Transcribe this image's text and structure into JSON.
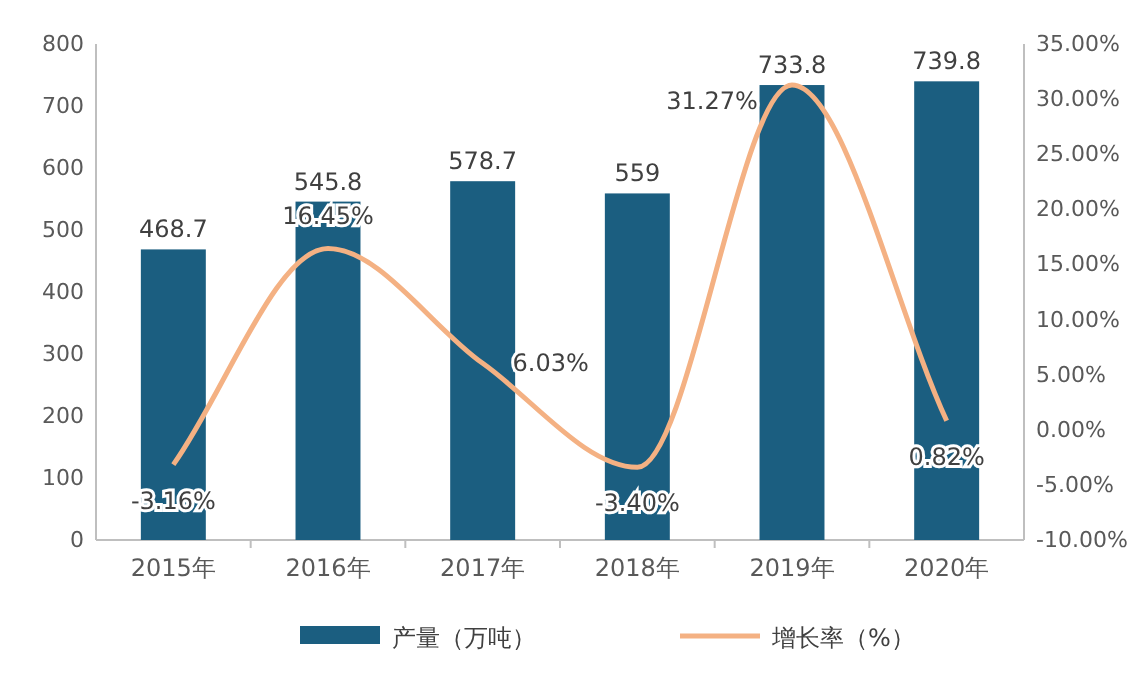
{
  "chart_data": {
    "type": "bar",
    "categories": [
      "2015年",
      "2016年",
      "2017年",
      "2018年",
      "2019年",
      "2020年"
    ],
    "series": [
      {
        "name": "产量（万吨）",
        "color": "#1b5e80",
        "values": [
          468.7,
          545.8,
          578.7,
          559,
          733.8,
          739.8
        ],
        "value_labels": [
          "468.7",
          "545.8",
          "578.7",
          "559",
          "733.8",
          "739.8"
        ]
      },
      {
        "name": "增长率（%）",
        "type": "line",
        "axis": "y2",
        "color": "#f4b183",
        "values": [
          -3.16,
          16.45,
          6.03,
          -3.4,
          31.27,
          0.82
        ],
        "value_labels": [
          "-3.16%",
          "16.45%",
          "6.03%",
          "-3.40%",
          "31.27%",
          "0.82%"
        ]
      }
    ],
    "ylim": [
      0,
      800
    ],
    "yticks": [
      0,
      100,
      200,
      300,
      400,
      500,
      600,
      700,
      800
    ],
    "y2lim": [
      -10,
      35
    ],
    "y2ticks": [
      {
        "value": -10,
        "label": "-10.00%"
      },
      {
        "value": -5,
        "label": "-5.00%"
      },
      {
        "value": 0,
        "label": "0.00%"
      },
      {
        "value": 5,
        "label": "5.00%"
      },
      {
        "value": 10,
        "label": "10.00%"
      },
      {
        "value": 15,
        "label": "15.00%"
      },
      {
        "value": 20,
        "label": "20.00%"
      },
      {
        "value": 25,
        "label": "25.00%"
      },
      {
        "value": 30,
        "label": "30.00%"
      },
      {
        "value": 35,
        "label": "35.00%"
      }
    ],
    "legend": "bottom",
    "grid": false,
    "marker": "none",
    "line_style": "solid"
  }
}
